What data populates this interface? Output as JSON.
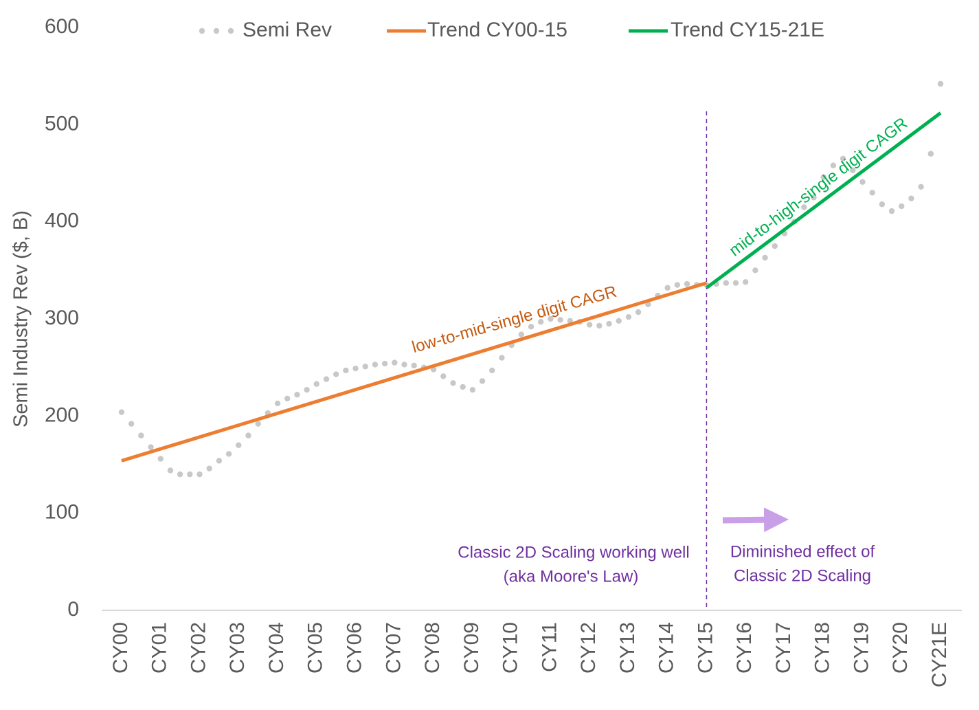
{
  "chart_data": {
    "type": "line",
    "y_label": "Semi Industry Rev ($, B)",
    "ylim": [
      0,
      600
    ],
    "yticks": [
      0,
      100,
      200,
      300,
      400,
      500,
      600
    ],
    "categories": [
      "CY00",
      null,
      null,
      null,
      "CY01",
      null,
      null,
      null,
      "CY02",
      null,
      null,
      null,
      "CY03",
      null,
      null,
      null,
      "CY04",
      null,
      null,
      null,
      "CY05",
      null,
      null,
      null,
      "CY06",
      null,
      null,
      null,
      "CY07",
      null,
      null,
      null,
      "CY08",
      null,
      null,
      null,
      "CY09",
      null,
      null,
      null,
      "CY10",
      null,
      null,
      null,
      "CY11",
      null,
      null,
      null,
      "CY12",
      null,
      null,
      null,
      "CY13",
      null,
      null,
      null,
      "CY14",
      null,
      null,
      null,
      "CY15",
      null,
      null,
      null,
      "CY16",
      null,
      null,
      null,
      "CY17",
      null,
      null,
      null,
      "CY18",
      null,
      null,
      null,
      "CY19",
      null,
      null,
      null,
      "CY20",
      null,
      null,
      null,
      "CY21E"
    ],
    "series": [
      {
        "name": "Semi Rev",
        "color": "#c8c8c8",
        "style": "dotted",
        "values": [
          204,
          192,
          180,
          168,
          156,
          144,
          140,
          140,
          140,
          146,
          154,
          161,
          170,
          180,
          192,
          203,
          213,
          218,
          222,
          227,
          233,
          238,
          243,
          247,
          249,
          251,
          253,
          254,
          255,
          253,
          252,
          250,
          248,
          241,
          234,
          230,
          227,
          236,
          247,
          260,
          273,
          284,
          292,
          297,
          300,
          299,
          298,
          297,
          294,
          293,
          295,
          298,
          302,
          307,
          315,
          324,
          332,
          335,
          336,
          335,
          335,
          336,
          337,
          337,
          338,
          350,
          363,
          375,
          388,
          400,
          415,
          425,
          446,
          458,
          465,
          453,
          441,
          430,
          418,
          411,
          416,
          424,
          436,
          470,
          542
        ]
      },
      {
        "name": "Trend CY00-15",
        "color": "#ed7d31",
        "style": "solid",
        "x": [
          "CY00",
          "CY15"
        ],
        "values": [
          154,
          337
        ]
      },
      {
        "name": "Trend CY15-21E",
        "color": "#00b050",
        "style": "solid",
        "x": [
          "CY15",
          "CY21E"
        ],
        "values": [
          332,
          512
        ]
      }
    ],
    "divider": "CY15",
    "annotations": [
      {
        "text": "low-to-mid-single digit CAGR",
        "color": "#c55a11"
      },
      {
        "text": "mid-to-high-single digit CAGR",
        "color": "#00b050"
      },
      {
        "text": "Classic 2D Scaling working well",
        "color": "#7030a0"
      },
      {
        "text": "(aka Moore's Law)",
        "color": "#7030a0"
      },
      {
        "text": "Diminished effect of",
        "color": "#7030a0"
      },
      {
        "text": "Classic 2D Scaling",
        "color": "#7030a0"
      }
    ]
  }
}
